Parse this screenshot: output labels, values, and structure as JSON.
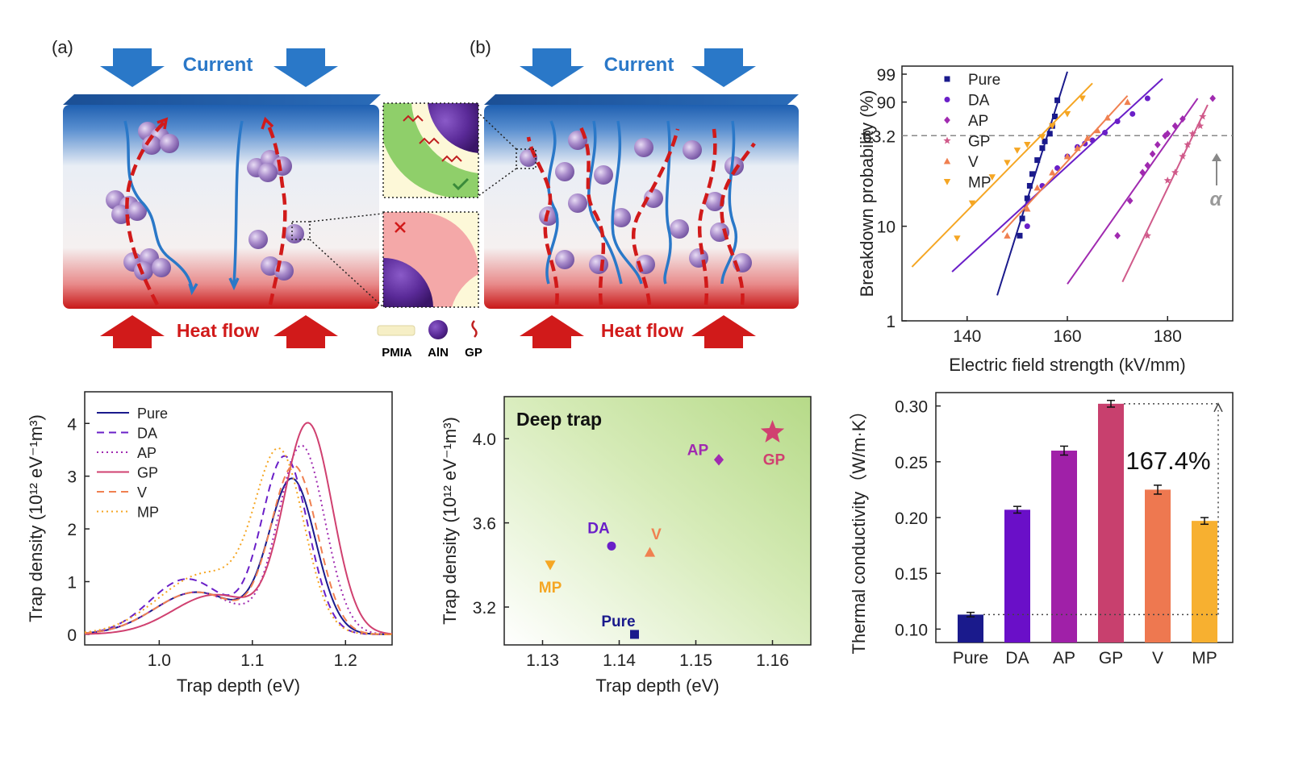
{
  "panel_labels": {
    "a": "(a)",
    "b": "(b)"
  },
  "schematic": {
    "current_label": "Current",
    "heat_label": "Heat flow",
    "legend": {
      "pmia": "PMIA",
      "aln": "AlN",
      "gp": "GP"
    },
    "colors": {
      "current": "#2a78c8",
      "heat": "#d11a1a",
      "particle": "#8a6ab8"
    }
  },
  "chart_data": [
    {
      "id": "weibull",
      "type": "scatter",
      "xlabel": "Electric field strength (kV/mm)",
      "ylabel": "Breakdown probability (%)",
      "x_ticks": [
        140,
        160,
        180
      ],
      "y_ticks": [
        1,
        10,
        63.2,
        90,
        99
      ],
      "xlim": [
        127,
        193
      ],
      "y_scale": "weibull",
      "hline": 63.2,
      "annotation": "α",
      "legend_position": "top-left",
      "series": [
        {
          "name": "Pure",
          "marker": "square",
          "color": "#1a1a8c",
          "x": [
            150.5,
            151,
            152,
            152.5,
            153,
            154,
            155,
            155.5,
            156.5,
            157,
            157.5,
            158
          ],
          "y": [
            8,
            12,
            19,
            25,
            32,
            42,
            52,
            58,
            65,
            72,
            80,
            91
          ],
          "fit_x": [
            146,
            160
          ]
        },
        {
          "name": "DA",
          "marker": "circle",
          "color": "#6a1fc8",
          "x": [
            152,
            155,
            158,
            160,
            162,
            163.5,
            165,
            167.5,
            170,
            173,
            176
          ],
          "y": [
            10,
            25,
            36,
            45,
            53,
            56,
            59,
            66,
            76,
            82,
            92
          ],
          "fit_x": [
            137,
            179
          ]
        },
        {
          "name": "AP",
          "marker": "diamond",
          "color": "#a02ab0",
          "x": [
            170,
            172.5,
            175,
            176,
            177,
            178,
            179.5,
            180,
            181.5,
            183,
            189
          ],
          "y": [
            8,
            18,
            33,
            38,
            47,
            55,
            63,
            65,
            72,
            78,
            92
          ],
          "fit_x": [
            160,
            186
          ]
        },
        {
          "name": "GP",
          "marker": "star",
          "color": "#d05a8a",
          "x": [
            176,
            180,
            181.5,
            183,
            184,
            185,
            186.5,
            187
          ],
          "y": [
            8,
            28,
            33,
            45,
            55,
            65,
            72,
            80
          ],
          "fit_x": [
            171,
            188
          ]
        },
        {
          "name": "V",
          "marker": "triangle-up",
          "color": "#f08050",
          "x": [
            148,
            152,
            154,
            157,
            160,
            162,
            164,
            166,
            168,
            172
          ],
          "y": [
            8,
            15,
            24,
            33,
            45,
            52,
            61,
            68,
            79,
            90
          ],
          "fit_x": [
            147,
            172
          ]
        },
        {
          "name": "MP",
          "marker": "triangle-down",
          "color": "#f5a623",
          "x": [
            138,
            141,
            145,
            148,
            150,
            152,
            155,
            157,
            160,
            163
          ],
          "y": [
            7.5,
            17,
            30,
            40,
            50,
            55,
            62,
            72,
            82,
            92
          ],
          "fit_x": [
            129,
            165
          ]
        }
      ]
    },
    {
      "id": "trap_distribution",
      "type": "line",
      "xlabel": "Trap depth (eV)",
      "ylabel": "Trap density (10¹² eV⁻¹m³)",
      "x_ticks": [
        1.0,
        1.1,
        1.2
      ],
      "y_ticks": [
        0,
        1,
        2,
        3,
        4
      ],
      "xlim": [
        0.92,
        1.25
      ],
      "ylim": [
        -0.2,
        4.6
      ],
      "legend_position": "top-left",
      "series": [
        {
          "name": "Pure",
          "style": "solid",
          "color": "#1a1a8c",
          "mu1": 1.04,
          "a1": 0.8,
          "s1": 0.045,
          "mu2": 1.143,
          "a2": 2.9,
          "s2": 0.025
        },
        {
          "name": "DA",
          "style": "dashed",
          "color": "#6a1fc8",
          "mu1": 1.03,
          "a1": 1.05,
          "s1": 0.04,
          "mu2": 1.135,
          "a2": 3.35,
          "s2": 0.025
        },
        {
          "name": "AP",
          "style": "dotted",
          "color": "#a02ab0",
          "mu1": 1.04,
          "a1": 0.8,
          "s1": 0.045,
          "mu2": 1.153,
          "a2": 3.55,
          "s2": 0.025
        },
        {
          "name": "GP",
          "style": "solid",
          "color": "#d04070",
          "mu1": 1.06,
          "a1": 0.75,
          "s1": 0.045,
          "mu2": 1.16,
          "a2": 3.95,
          "s2": 0.026
        },
        {
          "name": "V",
          "style": "dashed",
          "color": "#f08050",
          "mu1": 1.04,
          "a1": 0.8,
          "s1": 0.045,
          "mu2": 1.145,
          "a2": 3.15,
          "s2": 0.025
        },
        {
          "name": "MP",
          "style": "dotted",
          "color": "#f5a623",
          "mu1": 1.05,
          "a1": 1.15,
          "s1": 0.05,
          "mu2": 1.13,
          "a2": 3.2,
          "s2": 0.026
        }
      ]
    },
    {
      "id": "trap_scatter",
      "type": "scatter",
      "title": "Deep trap",
      "xlabel": "Trap depth (eV)",
      "ylabel": "Trap density (10¹² eV⁻¹m³)",
      "x_ticks": [
        1.13,
        1.14,
        1.15,
        1.16
      ],
      "y_ticks": [
        3.2,
        3.6,
        4.0
      ],
      "xlim": [
        1.125,
        1.165
      ],
      "ylim": [
        3.02,
        4.2
      ],
      "points": [
        {
          "label": "Pure",
          "x": 1.142,
          "y": 3.07,
          "marker": "square",
          "color": "#1a1a8c"
        },
        {
          "label": "DA",
          "x": 1.139,
          "y": 3.49,
          "marker": "circle",
          "color": "#6a1fc8"
        },
        {
          "label": "AP",
          "x": 1.153,
          "y": 3.9,
          "marker": "diamond",
          "color": "#a02ab0"
        },
        {
          "label": "GP",
          "x": 1.16,
          "y": 4.03,
          "marker": "star",
          "color": "#d04070"
        },
        {
          "label": "V",
          "x": 1.144,
          "y": 3.46,
          "marker": "triangle-up",
          "color": "#f08050"
        },
        {
          "label": "MP",
          "x": 1.131,
          "y": 3.4,
          "marker": "triangle-down",
          "color": "#f5a623"
        }
      ]
    },
    {
      "id": "thermal_conductivity",
      "type": "bar",
      "ylabel": "Thermal conductivity（W/m·K）",
      "categories": [
        "Pure",
        "DA",
        "AP",
        "GP",
        "V",
        "MP"
      ],
      "values": [
        0.113,
        0.207,
        0.26,
        0.302,
        0.225,
        0.197
      ],
      "errors": [
        0.002,
        0.003,
        0.004,
        0.003,
        0.004,
        0.003
      ],
      "colors": [
        "#1a1a8c",
        "#6a0fc8",
        "#a020a8",
        "#c8406e",
        "#ee7850",
        "#f7b030"
      ],
      "y_ticks": [
        0.1,
        0.15,
        0.2,
        0.25,
        0.3
      ],
      "ylim": [
        0.088,
        0.312
      ],
      "annotation": "167.4%"
    }
  ]
}
